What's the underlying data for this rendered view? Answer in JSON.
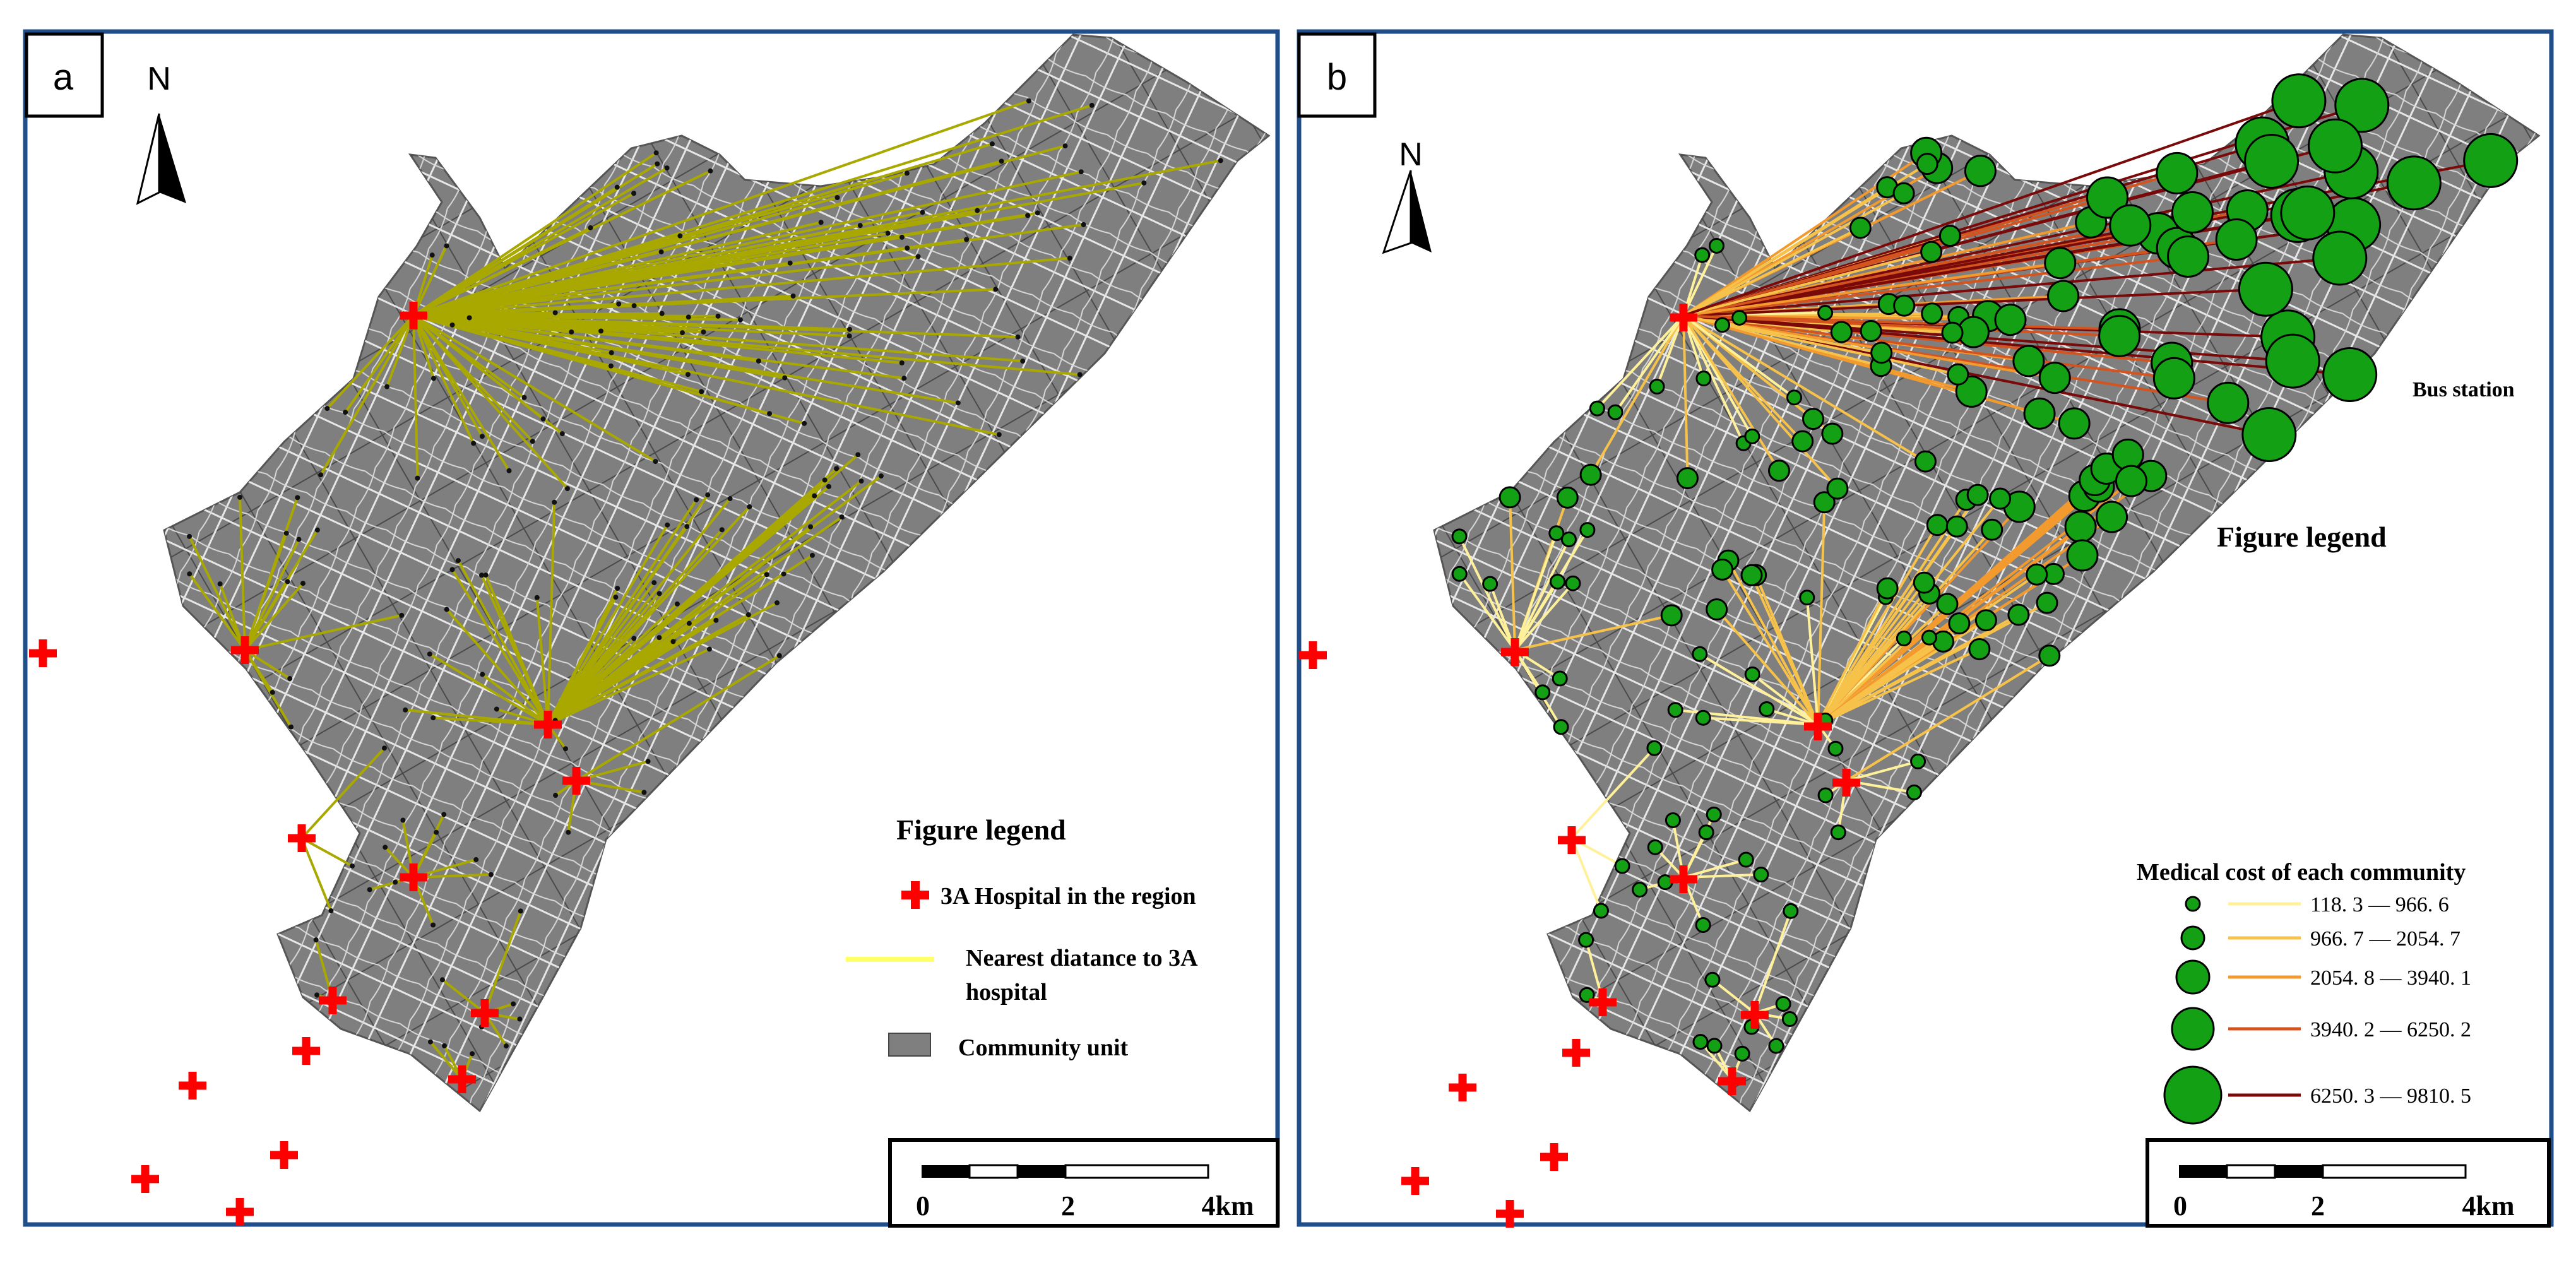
{
  "panels": [
    {
      "id": "a",
      "label": "a",
      "north": "N",
      "legend": {
        "title": "Figure legend",
        "hospital": "3A Hospital in the  region",
        "line_1": "Nearest diatance to 3A",
        "line_2": "hospital",
        "community": "Community unit"
      },
      "scale": {
        "t0": "0",
        "t1": "2",
        "t2": "4km"
      }
    },
    {
      "id": "b",
      "label": "b",
      "north": "N",
      "bus_station": "Bus station",
      "legend": {
        "title": "Figure legend",
        "cost_title": "Medical cost of  each community",
        "classes": [
          {
            "range": "118. 3 — 966. 6",
            "color": "#fff19a"
          },
          {
            "range": "966. 7 — 2054. 7",
            "color": "#f7c24a"
          },
          {
            "range": "2054. 8 — 3940. 1",
            "color": "#f29a2e"
          },
          {
            "range": "3940. 2 — 6250. 2",
            "color": "#d4541f"
          },
          {
            "range": "6250. 3 — 9810. 5",
            "color": "#7a0a0a"
          }
        ]
      },
      "scale": {
        "t0": "0",
        "t1": "2",
        "t2": "4km"
      }
    }
  ],
  "colors": {
    "frame": "#1f4e89",
    "community": "#7f7f7f",
    "road": "#e8e8e8",
    "hospital": "#ff0000",
    "line_a": "#a8a800",
    "circle_fill": "#14a014"
  }
}
